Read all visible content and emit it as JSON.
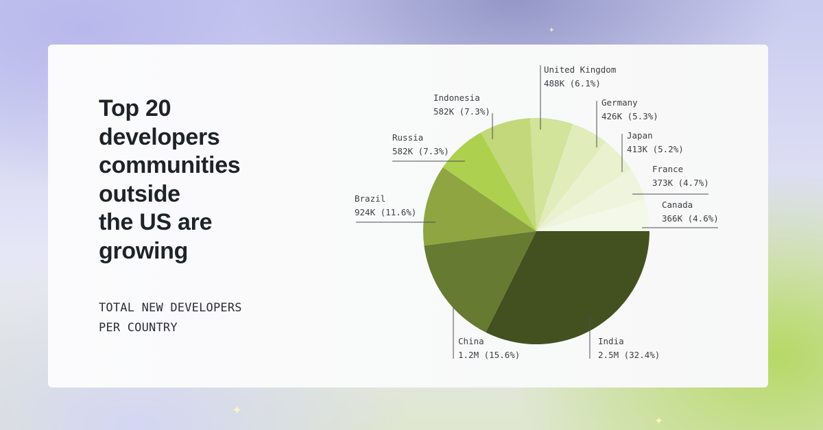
{
  "title_lines": [
    "Top 20",
    "developers",
    "communities",
    "outside",
    "the US are",
    "growing"
  ],
  "subtitle_lines": [
    "TOTAL NEW DEVELOPERS",
    "PER COUNTRY"
  ],
  "chart_data": {
    "type": "pie",
    "title": "Top 20 developers communities outside the US are growing",
    "subtitle": "TOTAL NEW DEVELOPERS PER COUNTRY",
    "slices": [
      {
        "name": "India",
        "value_label": "2.5M (32.4%)",
        "percent": 32.4,
        "color": "#435121"
      },
      {
        "name": "China",
        "value_label": "1.2M (15.6%)",
        "percent": 15.6,
        "color": "#667a31"
      },
      {
        "name": "Brazil",
        "value_label": "924K (11.6%)",
        "percent": 11.6,
        "color": "#8ea542"
      },
      {
        "name": "Russia",
        "value_label": "582K (7.3%)",
        "percent": 7.3,
        "color": "#aed04f"
      },
      {
        "name": "Indonesia",
        "value_label": "582K (7.3%)",
        "percent": 7.3,
        "color": "#c2d87a"
      },
      {
        "name": "United Kingdom",
        "value_label": "488K (6.1%)",
        "percent": 6.1,
        "color": "#d2e39a"
      },
      {
        "name": "Germany",
        "value_label": "426K (5.3%)",
        "percent": 5.3,
        "color": "#e1ecbb"
      },
      {
        "name": "Japan",
        "value_label": "413K (5.2%)",
        "percent": 5.2,
        "color": "#e9f1cf"
      },
      {
        "name": "France",
        "value_label": "373K (4.7%)",
        "percent": 4.7,
        "color": "#eff5dd"
      },
      {
        "name": "Canada",
        "value_label": "366K (4.6%)",
        "percent": 4.6,
        "color": "#f4f8e9"
      }
    ]
  }
}
